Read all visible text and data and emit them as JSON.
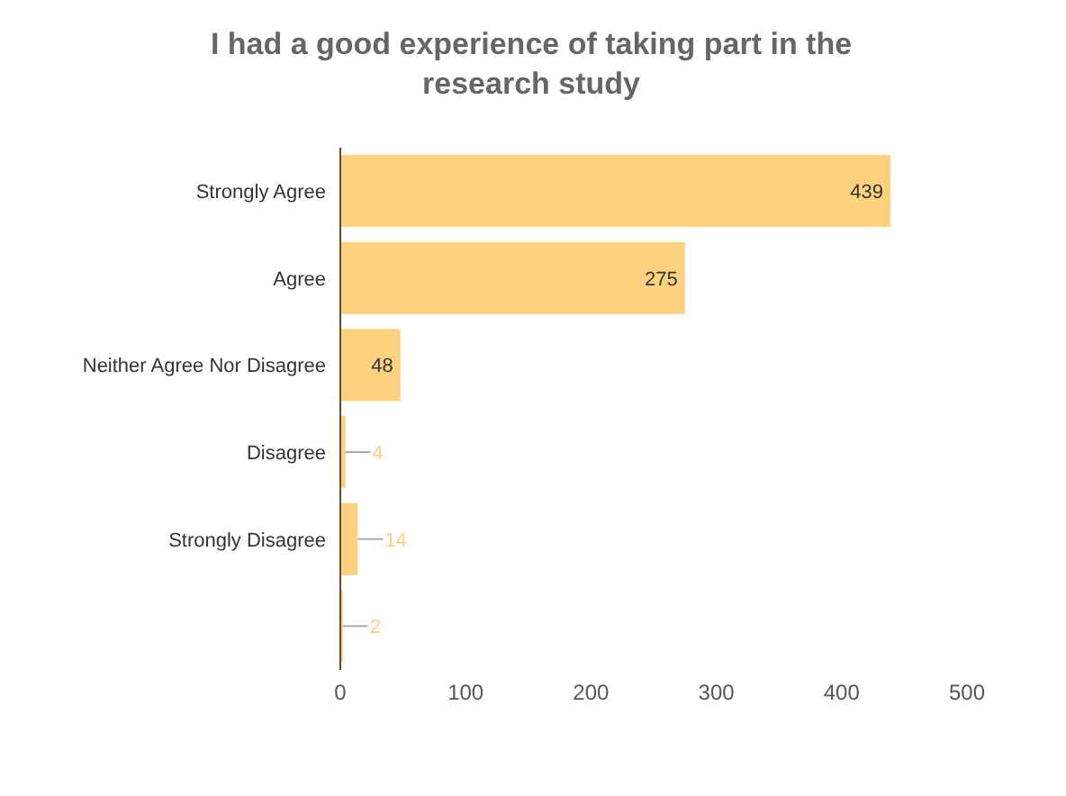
{
  "chart_data": {
    "type": "bar",
    "orientation": "horizontal",
    "title": "I had a good experience of taking part in the research study",
    "categories": [
      "Strongly Agree",
      "Agree",
      "Neither Agree Nor Disagree",
      "Disagree",
      "Strongly Disagree",
      null
    ],
    "values": [
      439,
      275,
      48,
      4,
      14,
      2
    ],
    "color": "#ffd27f",
    "xlim": [
      0,
      500
    ],
    "xticks": [
      0,
      100,
      200,
      300,
      400,
      500
    ],
    "grid": false,
    "legend": false,
    "data_labels": true
  }
}
